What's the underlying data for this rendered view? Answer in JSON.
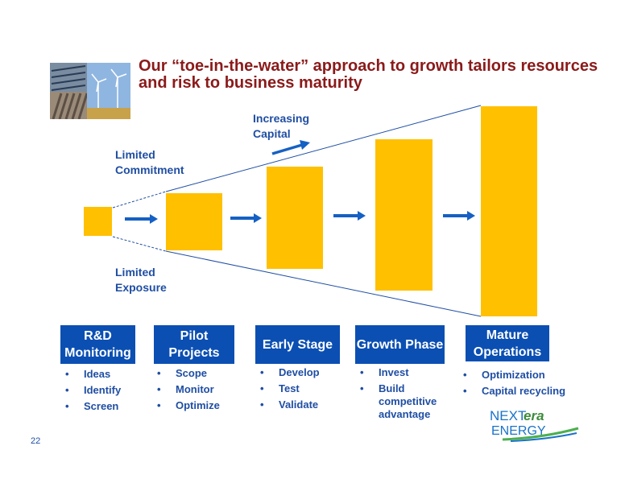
{
  "title": "Our “toe-in-the-water” approach to growth tailors resources and risk to business maturity",
  "labels": {
    "increasing_capital": "Increasing Capital",
    "limited_commitment": "Limited Commitment",
    "limited_exposure": "Limited Exposure"
  },
  "stages": [
    {
      "label": "R&D Monitoring",
      "items": [
        "Ideas",
        "Identify",
        "Screen"
      ]
    },
    {
      "label": "Pilot Projects",
      "items": [
        "Scope",
        "Monitor",
        "Optimize"
      ]
    },
    {
      "label": "Early Stage",
      "items": [
        "Develop",
        "Test",
        "Validate"
      ]
    },
    {
      "label": "Growth Phase",
      "items": [
        "Invest",
        "Build competitive advantage"
      ]
    },
    {
      "label": "Mature Operations",
      "items": [
        "Optimization",
        "Capital recycling"
      ]
    }
  ],
  "logo": {
    "text": "NEXTera ENERGY"
  },
  "page_number": "22",
  "colors": {
    "title": "#8b1a1a",
    "accent_blue": "#0b4fb3",
    "box_yellow": "#ffc000"
  }
}
